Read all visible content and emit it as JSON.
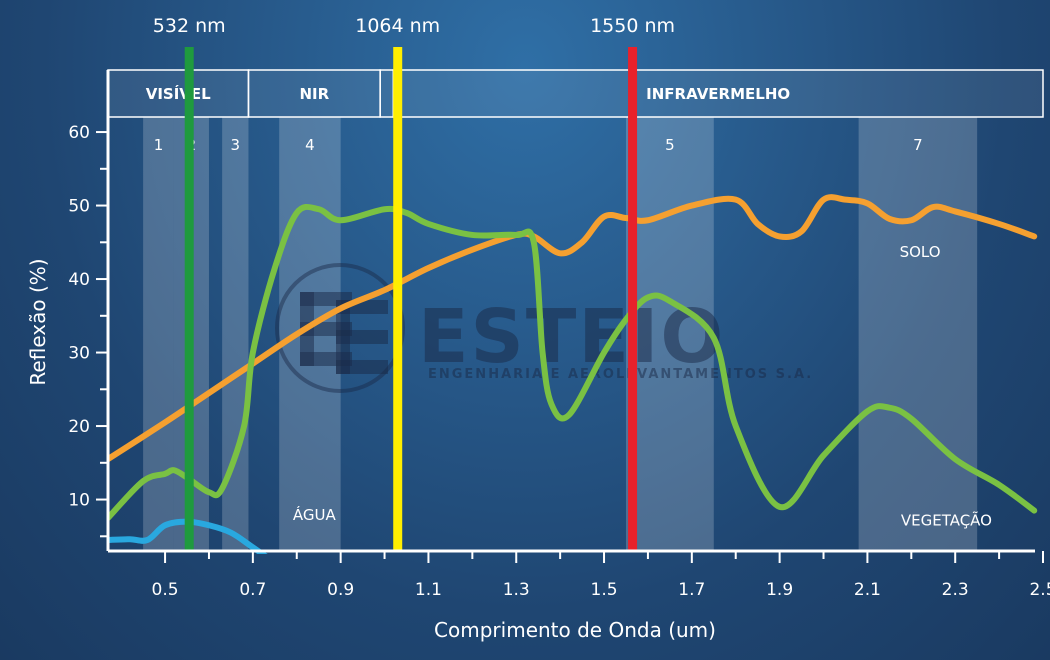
{
  "chart_data": {
    "type": "line",
    "xlabel": "Comprimento de Onda (um)",
    "ylabel": "Reflexão (%)",
    "xlim": [
      0.37,
      2.5
    ],
    "ylim": [
      3,
      64
    ],
    "xticks": [
      "0.5",
      "0.7",
      "0.9",
      "1.1",
      "1.3",
      "1.5",
      "1.7",
      "1.9",
      "2.1",
      "2.3",
      "2.5"
    ],
    "yticks": [
      "10",
      "20",
      "30",
      "40",
      "50",
      "60"
    ],
    "grid": false,
    "regions": [
      {
        "label": "VISÍVEL",
        "x0": 0.37,
        "x1": 0.69
      },
      {
        "label": "NIR",
        "x0": 0.69,
        "x1": 0.99
      },
      {
        "label": "",
        "x0": 0.99,
        "x1": 1.02
      },
      {
        "label": "INFRAVERMELHO",
        "x0": 1.02,
        "x1": 2.5
      }
    ],
    "bands": [
      {
        "label": "1",
        "x0": 0.45,
        "x1": 0.52
      },
      {
        "label": "2",
        "x0": 0.52,
        "x1": 0.6
      },
      {
        "label": "3",
        "x0": 0.63,
        "x1": 0.69
      },
      {
        "label": "4",
        "x0": 0.76,
        "x1": 0.9
      },
      {
        "label": "5",
        "x0": 1.55,
        "x1": 1.75
      },
      {
        "label": "7",
        "x0": 2.08,
        "x1": 2.35
      }
    ],
    "lasers": [
      {
        "label": "532 nm",
        "x": 0.555,
        "color": "#1f9a3e"
      },
      {
        "label": "1064 nm",
        "x": 1.03,
        "color": "#ffee00"
      },
      {
        "label": "1550 nm",
        "x": 1.565,
        "color": "#e8212b"
      }
    ],
    "series": [
      {
        "name": "SOLO",
        "color": "#f5a030",
        "x": [
          0.37,
          0.5,
          0.6,
          0.7,
          0.8,
          0.9,
          1.0,
          1.1,
          1.2,
          1.3,
          1.34,
          1.4,
          1.45,
          1.5,
          1.55,
          1.6,
          1.7,
          1.8,
          1.85,
          1.9,
          1.95,
          2.0,
          2.05,
          2.1,
          2.15,
          2.2,
          2.25,
          2.3,
          2.4,
          2.48
        ],
        "values": [
          15.5,
          20.5,
          24.5,
          28.5,
          32.5,
          36.0,
          38.5,
          41.5,
          44.0,
          46.0,
          45.8,
          43.5,
          45.0,
          48.5,
          48.3,
          48.0,
          50.0,
          50.8,
          47.5,
          45.8,
          46.5,
          50.8,
          50.8,
          50.3,
          48.2,
          48.0,
          49.8,
          49.2,
          47.5,
          45.8
        ]
      },
      {
        "name": "VEGETAÇÃO",
        "color": "#7ac143",
        "x": [
          0.37,
          0.45,
          0.5,
          0.52,
          0.55,
          0.6,
          0.63,
          0.68,
          0.7,
          0.75,
          0.8,
          0.85,
          0.9,
          1.0,
          1.05,
          1.1,
          1.2,
          1.3,
          1.34,
          1.36,
          1.38,
          1.42,
          1.5,
          1.55,
          1.6,
          1.65,
          1.75,
          1.8,
          1.9,
          2.0,
          2.1,
          2.15,
          2.2,
          2.3,
          2.4,
          2.48
        ],
        "values": [
          7.5,
          12.5,
          13.5,
          14.0,
          13.0,
          11.0,
          11.5,
          20.0,
          30.0,
          41.5,
          49.0,
          49.5,
          48.0,
          49.5,
          49.0,
          47.5,
          46.0,
          46.0,
          45.0,
          30.0,
          23.0,
          21.5,
          30.0,
          34.5,
          37.5,
          37.0,
          32.0,
          20.0,
          9.0,
          16.0,
          22.0,
          22.5,
          21.0,
          15.5,
          12.0,
          8.5
        ]
      },
      {
        "name": "ÁGUA",
        "color": "#29a8df",
        "x": [
          0.37,
          0.42,
          0.46,
          0.5,
          0.55,
          0.6,
          0.65,
          0.7,
          0.76
        ],
        "values": [
          4.5,
          4.6,
          4.5,
          6.5,
          7.0,
          6.5,
          5.5,
          3.5,
          1.0
        ]
      }
    ]
  },
  "watermark": {
    "name": "ESTEIO",
    "tagline": "ENGENHARIA E AEROLEVANTAMENTOS S.A."
  }
}
